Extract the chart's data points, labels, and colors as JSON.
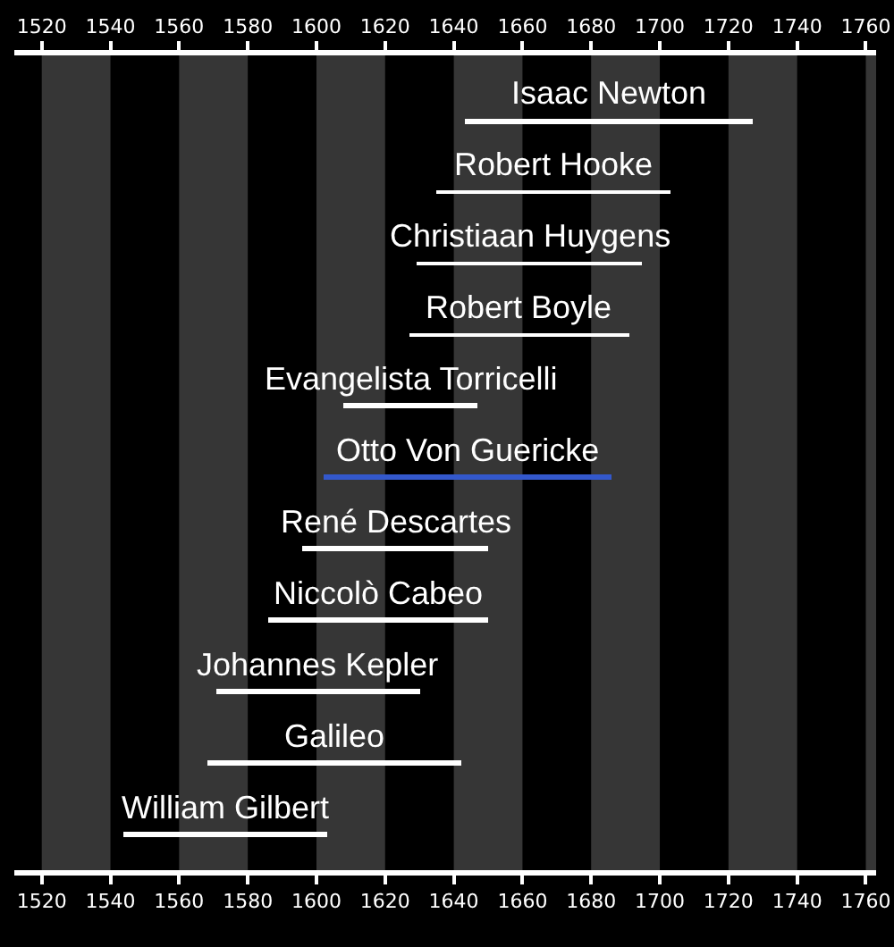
{
  "chart_data": {
    "type": "bar",
    "orientation": "horizontal",
    "categories": [
      "Isaac Newton",
      "Robert Hooke",
      "Christiaan Huygens",
      "Robert Boyle",
      "Evangelista Torricelli",
      "Otto Von Guericke",
      "René Descartes",
      "Niccolò Cabeo",
      "Johannes Kepler",
      "Galileo",
      "William Gilbert"
    ],
    "base": [
      1643,
      1635,
      1629,
      1627,
      1608,
      1602,
      1596,
      1586,
      1571,
      1568,
      1544
    ],
    "values": [
      84,
      68,
      66,
      64,
      39,
      84,
      54,
      64,
      59,
      74,
      59
    ],
    "colors": [
      "#ffffff",
      "#ffffff",
      "#ffffff",
      "#ffffff",
      "#ffffff",
      "#3358cc",
      "#ffffff",
      "#ffffff",
      "#ffffff",
      "#ffffff",
      "#ffffff"
    ],
    "xlim": [
      1512,
      1763
    ],
    "xticks": [
      1520,
      1540,
      1560,
      1580,
      1600,
      1620,
      1640,
      1660,
      1680,
      1700,
      1720,
      1740,
      1760
    ],
    "x2lim": [
      1512,
      1763
    ],
    "x2ticks": [
      1520,
      1540,
      1560,
      1580,
      1600,
      1620,
      1640,
      1660,
      1680,
      1700,
      1720,
      1740,
      1760
    ],
    "tick_labels": "x",
    "bands": [
      {
        "axis": "x",
        "from": 1520,
        "to": 1540,
        "color": "#363636"
      },
      {
        "axis": "x",
        "from": 1560,
        "to": 1580,
        "color": "#363636"
      },
      {
        "axis": "x",
        "from": 1600,
        "to": 1620,
        "color": "#363636"
      },
      {
        "axis": "x",
        "from": 1640,
        "to": 1660,
        "color": "#363636"
      },
      {
        "axis": "x",
        "from": 1680,
        "to": 1700,
        "color": "#363636"
      },
      {
        "axis": "x",
        "from": 1720,
        "to": 1740,
        "color": "#363636"
      },
      {
        "axis": "x",
        "from": 1760,
        "to": 1763,
        "color": "#363636"
      }
    ]
  }
}
